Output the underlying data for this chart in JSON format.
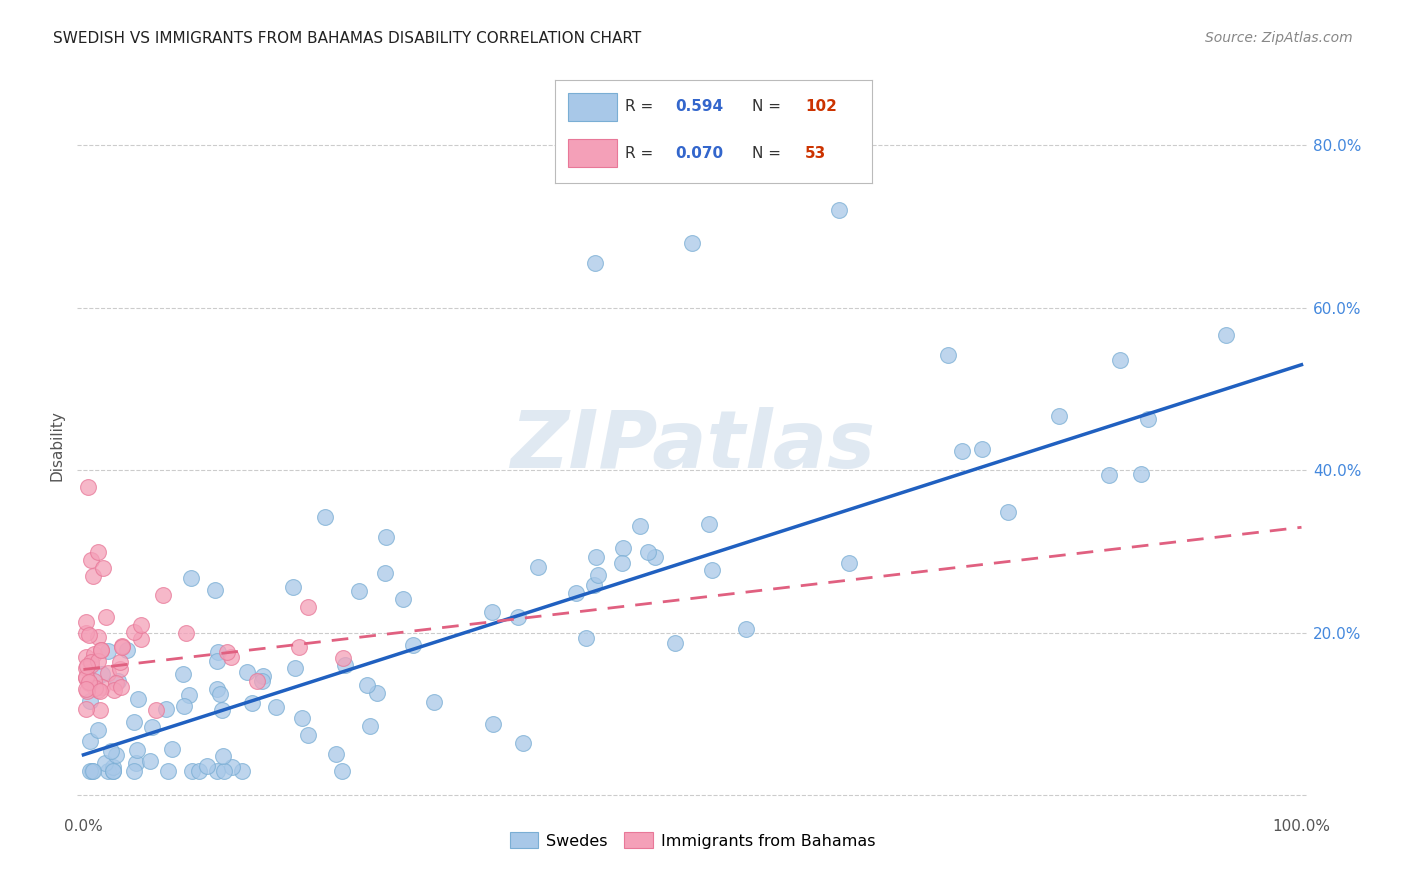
{
  "title": "SWEDISH VS IMMIGRANTS FROM BAHAMAS DISABILITY CORRELATION CHART",
  "source": "Source: ZipAtlas.com",
  "ylabel": "Disability",
  "blue_R": 0.594,
  "blue_N": 102,
  "pink_R": 0.07,
  "pink_N": 53,
  "blue_color": "#a8c8e8",
  "pink_color": "#f4a0b8",
  "blue_edge_color": "#7aaed4",
  "pink_edge_color": "#e87898",
  "blue_line_color": "#2060c0",
  "pink_line_color": "#e06080",
  "watermark": "ZIPatlas",
  "legend_labels": [
    "Swedes",
    "Immigrants from Bahamas"
  ],
  "xlim": [
    -0.005,
    1.005
  ],
  "ylim": [
    -0.02,
    0.88
  ],
  "xtick_positions": [
    0.0,
    0.1,
    0.2,
    0.3,
    0.4,
    0.5,
    0.6,
    0.7,
    0.8,
    0.9,
    1.0
  ],
  "ytick_positions": [
    0.0,
    0.2,
    0.4,
    0.6,
    0.8
  ],
  "xtick_labels": [
    "0.0%",
    "",
    "",
    "",
    "",
    "",
    "",
    "",
    "",
    "",
    "100.0%"
  ],
  "ytick_right_labels": [
    "",
    "20.0%",
    "40.0%",
    "60.0%",
    "80.0%"
  ],
  "blue_line_x0": 0.0,
  "blue_line_y0": 0.05,
  "blue_line_x1": 1.0,
  "blue_line_y1": 0.53,
  "pink_line_x0": 0.0,
  "pink_line_y0": 0.155,
  "pink_line_x1": 1.0,
  "pink_line_y1": 0.33,
  "grid_color": "#cccccc",
  "grid_style": "--",
  "title_fontsize": 11,
  "axis_label_fontsize": 11,
  "tick_fontsize": 11,
  "right_tick_color": "#4488dd",
  "source_color": "#888888"
}
